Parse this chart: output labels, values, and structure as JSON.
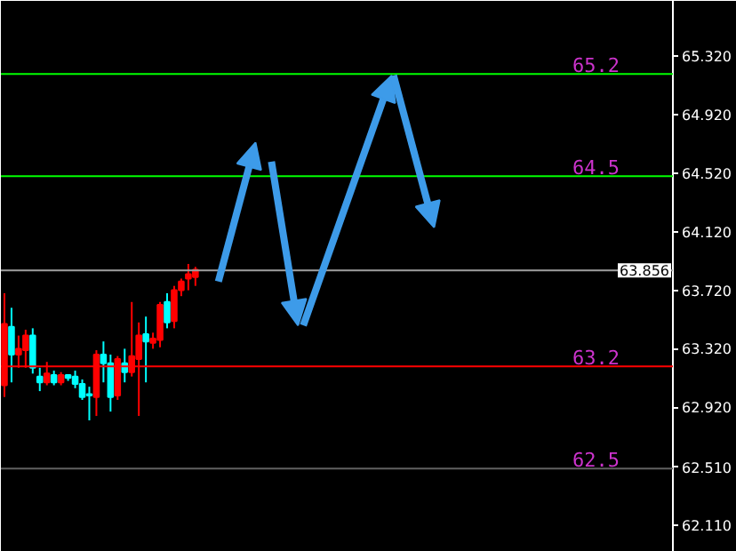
{
  "chart_data": {
    "type": "candlestick",
    "categories": [
      null,
      null,
      null,
      null,
      null,
      null,
      null,
      null,
      null,
      null,
      null,
      null,
      null,
      null,
      null,
      null,
      null,
      null,
      null,
      null,
      null,
      null,
      null,
      null,
      null,
      null,
      null,
      null,
      null,
      null,
      null,
      null,
      null,
      null,
      null,
      null,
      null,
      null,
      null,
      null,
      null,
      null,
      null,
      null,
      null,
      null,
      null,
      null,
      null,
      null,
      null,
      null,
      null,
      null,
      null,
      null,
      null,
      null,
      null,
      null,
      null,
      null,
      null,
      null,
      null,
      null,
      null,
      null,
      null,
      null,
      null,
      null,
      null,
      null,
      null,
      null,
      null,
      null,
      null,
      null,
      null,
      null,
      null,
      null,
      null,
      null,
      null,
      null,
      null,
      null,
      null,
      null,
      null,
      null,
      null
    ],
    "ohlc": [
      [
        63.07,
        63.7,
        62.99,
        63.49
      ],
      [
        63.47,
        63.6,
        63.09,
        63.28
      ],
      [
        63.28,
        63.41,
        63.19,
        63.32
      ],
      [
        63.31,
        63.45,
        63.19,
        63.41
      ],
      [
        63.41,
        63.46,
        63.15,
        63.19
      ],
      [
        63.13,
        63.19,
        63.03,
        63.09
      ],
      [
        63.09,
        63.23,
        63.07,
        63.15
      ],
      [
        63.14,
        63.17,
        63.07,
        63.09
      ],
      [
        63.09,
        63.16,
        63.07,
        63.14
      ],
      [
        63.14,
        63.14,
        63.1,
        63.12
      ],
      [
        63.13,
        63.17,
        63.05,
        63.08
      ],
      [
        63.08,
        63.11,
        62.97,
        62.99
      ],
      [
        63.01,
        63.06,
        62.83,
        63.0
      ],
      [
        62.99,
        63.31,
        62.86,
        63.28
      ],
      [
        63.28,
        63.37,
        63.09,
        63.22
      ],
      [
        63.22,
        63.28,
        62.89,
        62.99
      ],
      [
        63.0,
        63.27,
        62.97,
        63.25
      ],
      [
        63.22,
        63.32,
        63.09,
        63.16
      ],
      [
        63.16,
        63.64,
        63.13,
        63.27
      ],
      [
        63.25,
        63.5,
        62.86,
        63.41
      ],
      [
        63.42,
        63.54,
        63.09,
        63.37
      ],
      [
        63.36,
        63.43,
        63.32,
        63.39
      ],
      [
        63.38,
        63.64,
        63.33,
        63.62
      ],
      [
        63.64,
        63.7,
        63.46,
        63.5
      ],
      [
        63.51,
        63.75,
        63.46,
        63.72
      ],
      [
        63.72,
        63.8,
        63.68,
        63.78
      ],
      [
        63.8,
        63.9,
        63.72,
        63.83
      ],
      [
        63.81,
        63.88,
        63.75,
        63.86
      ],
      null,
      null,
      null,
      null,
      null,
      null,
      null,
      null,
      null,
      null,
      null,
      null,
      null,
      null,
      null,
      null,
      null,
      null,
      null,
      null,
      null,
      null,
      null,
      null,
      null,
      null,
      null,
      null,
      null,
      null,
      null,
      null,
      null,
      null,
      null,
      null,
      null,
      null,
      null,
      null,
      null,
      null,
      null,
      null,
      null,
      null,
      null,
      null,
      null,
      null,
      null,
      null,
      null,
      null,
      null,
      null,
      null,
      null,
      null,
      null,
      null,
      null,
      null,
      null,
      null,
      null,
      null
    ],
    "colors": [
      "#ff0000",
      "#00ffff",
      "#ff0000",
      "#ff0000",
      "#00ffff",
      "#00ffff",
      "#ff0000",
      "#00ffff",
      "#ff0000",
      "#00ffff",
      "#00ffff",
      "#00ffff",
      "#00ffff",
      "#ff0000",
      "#00ffff",
      "#00ffff",
      "#ff0000",
      "#00ffff",
      "#ff0000",
      "#ff0000",
      "#00ffff",
      "#ff0000",
      "#ff0000",
      "#00ffff",
      "#ff0000",
      "#ff0000",
      "#ff0000",
      "#ff0000",
      null,
      null,
      null,
      null,
      null,
      null,
      null,
      null,
      null,
      null,
      null,
      null,
      null,
      null,
      null,
      null,
      null,
      null,
      null,
      null,
      null,
      null,
      null,
      null,
      null,
      null,
      null,
      null,
      null,
      null,
      null,
      null,
      null,
      null,
      null,
      null,
      null,
      null,
      null,
      null,
      null,
      null,
      null,
      null,
      null,
      null,
      null,
      null,
      null,
      null,
      null,
      null,
      null,
      null,
      null,
      null,
      null,
      null,
      null,
      null,
      null,
      null,
      null,
      null,
      null,
      null,
      null
    ],
    "ylim": [
      61.93,
      65.7
    ],
    "yticks": [
      {
        "value": 62.11,
        "label": "62.110"
      },
      {
        "value": 62.51,
        "label": "62.510"
      },
      {
        "value": 62.92,
        "label": "62.920"
      },
      {
        "value": 63.32,
        "label": "63.320"
      },
      {
        "value": 63.72,
        "label": "63.720"
      },
      {
        "value": 64.12,
        "label": "64.120"
      },
      {
        "value": 64.52,
        "label": "64.520"
      },
      {
        "value": 64.92,
        "label": "64.920"
      },
      {
        "value": 65.32,
        "label": "65.320"
      }
    ],
    "tick_labels": "y",
    "grid": false,
    "ref_lines": [
      {
        "axis": "y",
        "value": 65.2,
        "label": "65.2",
        "color": "#00ff00"
      },
      {
        "axis": "y",
        "value": 64.5,
        "label": "64.5",
        "color": "#00ff00"
      },
      {
        "axis": "y",
        "value": 63.856,
        "label": "63.856",
        "color": "#a0a0a0"
      },
      {
        "axis": "y",
        "value": 63.2,
        "label": "63.2",
        "color": "#ff0000"
      },
      {
        "axis": "y",
        "value": 62.5,
        "label": "62.5",
        "color": "#606060"
      }
    ]
  }
}
